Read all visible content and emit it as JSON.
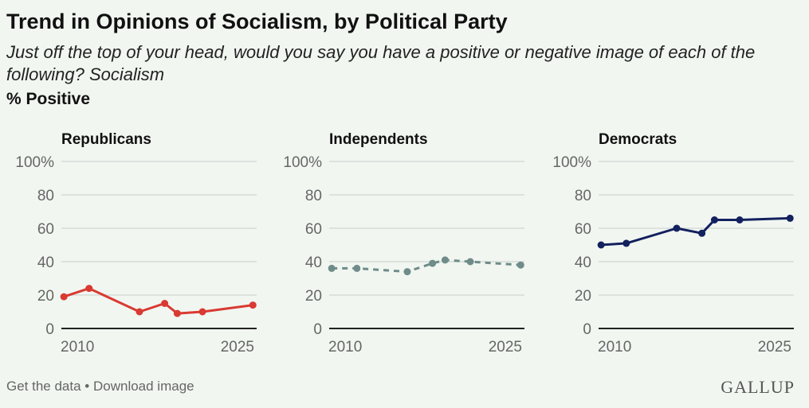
{
  "header": {
    "title": "Trend in Opinions of Socialism, by Political Party",
    "subtitle": "Just off the top of your head, would you say you have a positive or negative image of each of the following? Socialism",
    "measure": "% Positive"
  },
  "footer": {
    "get_data": "Get the data",
    "separator": " • ",
    "download": "Download image",
    "logo": "GALLUP"
  },
  "chart_data": [
    {
      "type": "line",
      "title": "Republicans",
      "color": "#d93a32",
      "dashed": false,
      "x": [
        2010,
        2012,
        2016,
        2018,
        2019,
        2021,
        2025
      ],
      "values": [
        19,
        24,
        10,
        15,
        9,
        10,
        14
      ],
      "ylim": [
        0,
        100
      ],
      "yticks": [
        "0",
        "20",
        "40",
        "60",
        "80",
        "100%"
      ],
      "xticks": [
        "2010",
        "2025"
      ],
      "grid": true
    },
    {
      "type": "line",
      "title": "Independents",
      "color": "#6f8c89",
      "dashed": true,
      "x": [
        2010,
        2012,
        2016,
        2018,
        2019,
        2021,
        2025
      ],
      "values": [
        36,
        36,
        34,
        39,
        41,
        40,
        38
      ],
      "ylim": [
        0,
        100
      ],
      "yticks": [
        "0",
        "20",
        "40",
        "60",
        "80",
        "100%"
      ],
      "xticks": [
        "2010",
        "2025"
      ],
      "grid": true
    },
    {
      "type": "line",
      "title": "Democrats",
      "color": "#13215e",
      "dashed": false,
      "x": [
        2010,
        2012,
        2016,
        2018,
        2019,
        2021,
        2025
      ],
      "values": [
        50,
        51,
        60,
        57,
        65,
        65,
        66
      ],
      "ylim": [
        0,
        100
      ],
      "yticks": [
        "0",
        "20",
        "40",
        "60",
        "80",
        "100%"
      ],
      "xticks": [
        "2010",
        "2025"
      ],
      "grid": true
    }
  ]
}
